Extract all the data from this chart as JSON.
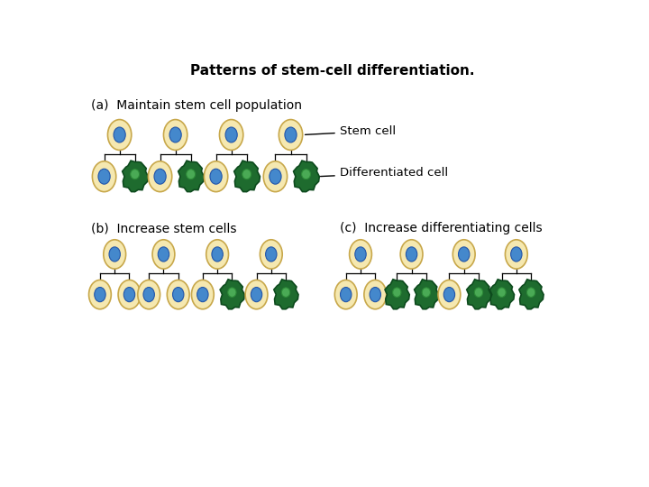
{
  "title": "Patterns of stem-cell differentiation.",
  "title_fontsize": 11,
  "bg_color": "#ffffff",
  "stem_outer": "#f5e8b0",
  "stem_outer_edge": "#c8a84b",
  "stem_inner": "#4488cc",
  "stem_inner_edge": "#2255aa",
  "diff_outer_dark": "#1e6b2e",
  "diff_outer_edge": "#0d4a1d",
  "diff_inner_light": "#4aaa55",
  "diff_inner_edge": "#2d8a38",
  "label_a": "(a)  Maintain stem cell population",
  "label_b": "(b)  Increase stem cells",
  "label_c": "(c)  Increase differentiating cells",
  "label_stem": "Stem cell",
  "label_diff": "Differentiated cell",
  "section_a_trees": [
    {
      "left": "stem",
      "right": "diff"
    },
    {
      "left": "stem",
      "right": "diff"
    },
    {
      "left": "stem",
      "right": "diff"
    },
    {
      "left": "stem",
      "right": "diff"
    }
  ],
  "section_b_trees": [
    {
      "left": "stem",
      "right": "stem"
    },
    {
      "left": "stem",
      "right": "stem"
    },
    {
      "left": "stem",
      "right": "diff"
    },
    {
      "left": "stem",
      "right": "diff"
    }
  ],
  "section_c_trees": [
    {
      "left": "stem",
      "right": "stem"
    },
    {
      "left": "diff",
      "right": "diff"
    },
    {
      "left": "stem",
      "right": "diff"
    },
    {
      "left": "diff",
      "right": "diff"
    }
  ]
}
